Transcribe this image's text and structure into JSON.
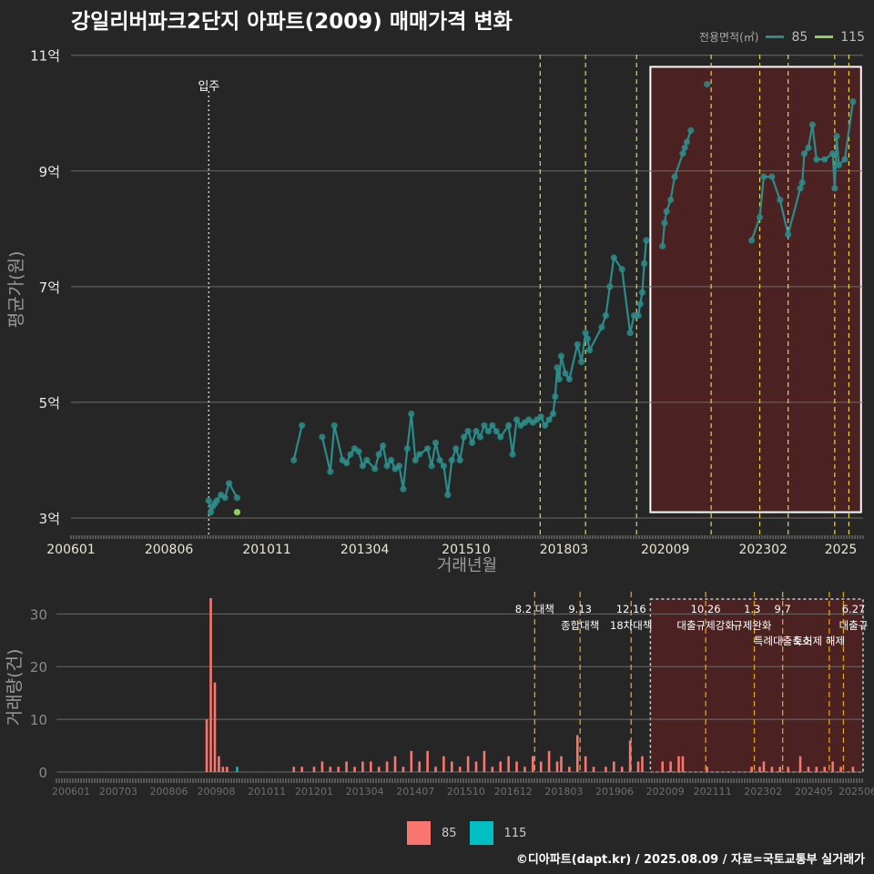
{
  "title": "강일리버파크2단지 아파트(2009) 매매가격 변화",
  "credit": "©디아파트(dapt.kr) / 2025.08.09 / 자료=국토교통부 실거래가",
  "colors": {
    "background": "#262626",
    "line85": "#2b8c8a",
    "line115": "#8ed15a",
    "bar85": "#f8766d",
    "bar115": "#00bfc4",
    "highlight": "#5a2020",
    "policy": "#e6d84a",
    "policyBottom": "#e0a020"
  },
  "legend_top": {
    "title": "전용면적(㎡)",
    "items": [
      {
        "label": "85",
        "color": "#2b8c8a"
      },
      {
        "label": "115",
        "color": "#8ed15a"
      }
    ]
  },
  "legend_bottom": {
    "items": [
      {
        "label": "85",
        "color": "#f8766d"
      },
      {
        "label": "115",
        "color": "#00bfc4"
      }
    ]
  },
  "chart_data": [
    {
      "type": "line",
      "title": "강일리버파크2단지 아파트(2009) 매매가격 변화",
      "xlabel": "거래년월",
      "ylabel": "평균가(원)",
      "x_tick_labels": [
        "200601",
        "200806",
        "201011",
        "201304",
        "201510",
        "201803",
        "202009",
        "202302",
        "2025"
      ],
      "y_tick_labels": [
        "3억",
        "5억",
        "7억",
        "9억",
        "11억"
      ],
      "ylim": [
        2.7,
        11.2
      ],
      "annotation": "입주",
      "annotation_x": 2009.4,
      "policy_lines_x": [
        2017.58,
        2018.7,
        2019.96,
        2021.8,
        2023.0,
        2023.7,
        2024.85,
        2025.2
      ],
      "highlight_range": {
        "x": [
          2020.3,
          2025.5
        ],
        "y": [
          3.1,
          10.8
        ]
      },
      "series": [
        {
          "name": "85",
          "points": [
            [
              2009.4,
              3.3
            ],
            [
              2009.45,
              3.1
            ],
            [
              2009.5,
              3.2
            ],
            [
              2009.55,
              3.25
            ],
            [
              2009.6,
              3.3
            ],
            [
              2009.7,
              3.4
            ],
            [
              2009.8,
              3.35
            ],
            [
              2009.9,
              3.6
            ],
            [
              2010.1,
              3.35
            ],
            [
              2011.5,
              4.0
            ],
            [
              2011.7,
              4.6
            ],
            [
              2012.2,
              4.4
            ],
            [
              2012.4,
              3.8
            ],
            [
              2012.5,
              4.6
            ],
            [
              2012.7,
              4.0
            ],
            [
              2012.8,
              3.95
            ],
            [
              2012.9,
              4.1
            ],
            [
              2013.0,
              4.2
            ],
            [
              2013.1,
              4.15
            ],
            [
              2013.2,
              3.9
            ],
            [
              2013.3,
              4.0
            ],
            [
              2013.5,
              3.85
            ],
            [
              2013.6,
              4.1
            ],
            [
              2013.7,
              4.25
            ],
            [
              2013.8,
              3.9
            ],
            [
              2013.9,
              4.0
            ],
            [
              2014.0,
              3.85
            ],
            [
              2014.1,
              3.9
            ],
            [
              2014.2,
              3.5
            ],
            [
              2014.3,
              4.2
            ],
            [
              2014.4,
              4.8
            ],
            [
              2014.5,
              4.0
            ],
            [
              2014.6,
              4.1
            ],
            [
              2014.8,
              4.2
            ],
            [
              2014.9,
              3.9
            ],
            [
              2015.0,
              4.3
            ],
            [
              2015.1,
              4.0
            ],
            [
              2015.2,
              3.9
            ],
            [
              2015.3,
              3.4
            ],
            [
              2015.4,
              4.0
            ],
            [
              2015.5,
              4.2
            ],
            [
              2015.6,
              4.0
            ],
            [
              2015.7,
              4.4
            ],
            [
              2015.8,
              4.5
            ],
            [
              2015.9,
              4.3
            ],
            [
              2016.0,
              4.5
            ],
            [
              2016.1,
              4.4
            ],
            [
              2016.2,
              4.6
            ],
            [
              2016.3,
              4.5
            ],
            [
              2016.4,
              4.6
            ],
            [
              2016.5,
              4.5
            ],
            [
              2016.6,
              4.4
            ],
            [
              2016.8,
              4.6
            ],
            [
              2016.9,
              4.1
            ],
            [
              2017.0,
              4.7
            ],
            [
              2017.1,
              4.6
            ],
            [
              2017.2,
              4.65
            ],
            [
              2017.3,
              4.7
            ],
            [
              2017.4,
              4.65
            ],
            [
              2017.5,
              4.7
            ],
            [
              2017.6,
              4.75
            ],
            [
              2017.7,
              4.6
            ],
            [
              2017.8,
              4.7
            ],
            [
              2017.9,
              4.8
            ],
            [
              2017.95,
              5.1
            ],
            [
              2018.0,
              5.6
            ],
            [
              2018.05,
              5.4
            ],
            [
              2018.1,
              5.8
            ],
            [
              2018.2,
              5.5
            ],
            [
              2018.3,
              5.4
            ],
            [
              2018.5,
              6.0
            ],
            [
              2018.6,
              5.7
            ],
            [
              2018.7,
              6.2
            ],
            [
              2018.75,
              6.1
            ],
            [
              2018.8,
              5.9
            ],
            [
              2019.1,
              6.3
            ],
            [
              2019.2,
              6.5
            ],
            [
              2019.3,
              7.0
            ],
            [
              2019.4,
              7.5
            ],
            [
              2019.6,
              7.3
            ],
            [
              2019.8,
              6.2
            ],
            [
              2019.9,
              6.5
            ],
            [
              2020.0,
              6.5
            ],
            [
              2020.05,
              6.7
            ],
            [
              2020.1,
              6.9
            ],
            [
              2020.15,
              7.4
            ],
            [
              2020.2,
              7.8
            ],
            [
              2020.6,
              7.7
            ],
            [
              2020.65,
              8.1
            ],
            [
              2020.7,
              8.3
            ],
            [
              2020.8,
              8.5
            ],
            [
              2020.9,
              8.9
            ],
            [
              2021.1,
              9.3
            ],
            [
              2021.15,
              9.4
            ],
            [
              2021.2,
              9.5
            ],
            [
              2021.3,
              9.7
            ],
            [
              2021.7,
              10.5
            ],
            [
              2022.8,
              7.8
            ],
            [
              2023.0,
              8.2
            ],
            [
              2023.1,
              8.9
            ],
            [
              2023.3,
              8.9
            ],
            [
              2023.5,
              8.5
            ],
            [
              2023.7,
              7.9
            ],
            [
              2024.0,
              8.7
            ],
            [
              2024.05,
              8.8
            ],
            [
              2024.1,
              9.3
            ],
            [
              2024.2,
              9.4
            ],
            [
              2024.3,
              9.8
            ],
            [
              2024.4,
              9.2
            ],
            [
              2024.6,
              9.2
            ],
            [
              2024.8,
              9.3
            ],
            [
              2024.85,
              8.7
            ],
            [
              2024.9,
              9.6
            ],
            [
              2024.95,
              9.1
            ],
            [
              2025.1,
              9.2
            ],
            [
              2025.3,
              10.2
            ]
          ]
        },
        {
          "name": "115",
          "points": [
            [
              2010.1,
              3.1
            ]
          ]
        }
      ]
    },
    {
      "type": "bar",
      "xlabel": "",
      "ylabel": "거래량(건)",
      "x_tick_labels": [
        "200601",
        "200703",
        "200806",
        "200908",
        "201011",
        "201201",
        "201304",
        "201407",
        "201510",
        "201612",
        "201803",
        "201906",
        "202009",
        "202111",
        "202302",
        "202405",
        "202506"
      ],
      "y_tick_labels": [
        "0",
        "10",
        "20",
        "30"
      ],
      "ylim": [
        0,
        33
      ],
      "highlight_range": {
        "x": [
          2020.3,
          2025.5
        ]
      },
      "annotations": [
        {
          "x": 2017.58,
          "lines": [
            "8.2 대책"
          ]
        },
        {
          "x": 2018.7,
          "lines": [
            "9.13",
            "종합대책"
          ]
        },
        {
          "x": 2019.96,
          "lines": [
            "12.16",
            "18차대책"
          ]
        },
        {
          "x": 2021.8,
          "lines": [
            "10.26",
            "대출규제강화"
          ]
        },
        {
          "x": 2022.95,
          "lines": [
            "1.3",
            "규제완화"
          ]
        },
        {
          "x": 2023.7,
          "lines": [
            "9.7",
            "특례대출축소"
          ]
        },
        {
          "x": 2024.6,
          "lines": [
            "",
            "토허제 해제"
          ]
        },
        {
          "x": 2025.45,
          "lines": [
            "6.27",
            "대출규"
          ]
        }
      ],
      "series": [
        {
          "name": "85",
          "points": [
            [
              2009.35,
              10
            ],
            [
              2009.45,
              33
            ],
            [
              2009.55,
              17
            ],
            [
              2009.65,
              3
            ],
            [
              2009.75,
              1
            ],
            [
              2009.85,
              1
            ],
            [
              2011.5,
              1
            ],
            [
              2011.7,
              1
            ],
            [
              2012.0,
              1
            ],
            [
              2012.2,
              2
            ],
            [
              2012.4,
              1
            ],
            [
              2012.6,
              1
            ],
            [
              2012.8,
              2
            ],
            [
              2013.0,
              1
            ],
            [
              2013.2,
              2
            ],
            [
              2013.4,
              2
            ],
            [
              2013.6,
              1
            ],
            [
              2013.8,
              2
            ],
            [
              2014.0,
              3
            ],
            [
              2014.2,
              1
            ],
            [
              2014.4,
              4
            ],
            [
              2014.6,
              2
            ],
            [
              2014.8,
              4
            ],
            [
              2015.0,
              1
            ],
            [
              2015.2,
              3
            ],
            [
              2015.4,
              2
            ],
            [
              2015.6,
              1
            ],
            [
              2015.8,
              3
            ],
            [
              2016.0,
              2
            ],
            [
              2016.2,
              4
            ],
            [
              2016.4,
              1
            ],
            [
              2016.6,
              2
            ],
            [
              2016.8,
              3
            ],
            [
              2017.0,
              2
            ],
            [
              2017.2,
              1
            ],
            [
              2017.4,
              3
            ],
            [
              2017.6,
              2
            ],
            [
              2017.8,
              4
            ],
            [
              2018.0,
              2
            ],
            [
              2018.1,
              3
            ],
            [
              2018.3,
              1
            ],
            [
              2018.5,
              7
            ],
            [
              2018.7,
              3
            ],
            [
              2018.9,
              1
            ],
            [
              2019.2,
              1
            ],
            [
              2019.4,
              2
            ],
            [
              2019.6,
              1
            ],
            [
              2019.8,
              6
            ],
            [
              2020.0,
              2
            ],
            [
              2020.1,
              3
            ],
            [
              2020.6,
              2
            ],
            [
              2020.8,
              2
            ],
            [
              2021.0,
              3
            ],
            [
              2021.1,
              3
            ],
            [
              2021.7,
              1
            ],
            [
              2022.8,
              1
            ],
            [
              2023.0,
              1
            ],
            [
              2023.1,
              2
            ],
            [
              2023.3,
              1
            ],
            [
              2023.5,
              1
            ],
            [
              2023.7,
              1
            ],
            [
              2024.0,
              3
            ],
            [
              2024.2,
              1
            ],
            [
              2024.4,
              1
            ],
            [
              2024.6,
              1
            ],
            [
              2024.8,
              2
            ],
            [
              2025.0,
              1
            ],
            [
              2025.3,
              1
            ]
          ]
        },
        {
          "name": "115",
          "points": [
            [
              2010.1,
              1
            ]
          ]
        }
      ]
    }
  ]
}
